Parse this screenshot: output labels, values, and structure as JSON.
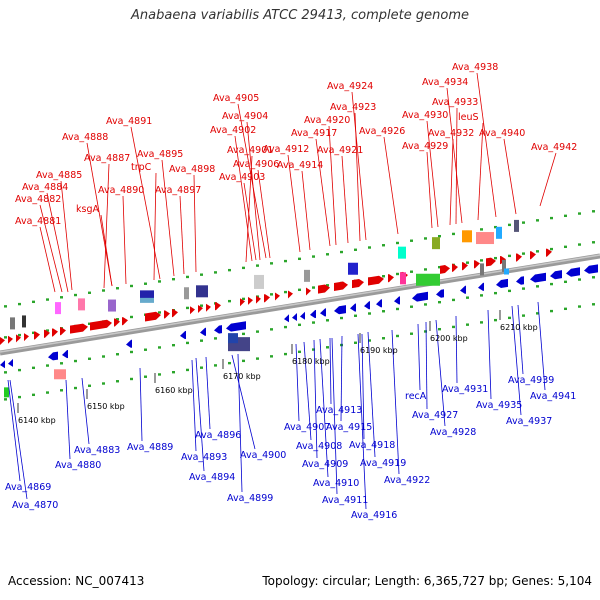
{
  "title": "Anabaena variabilis ATCC 29413, complete genome",
  "footer": {
    "accession": "Accession: NC_007413",
    "summary": "Topology: circular; Length: 6,365,727 bp; Genes: 5,104"
  },
  "colors": {
    "forward": "#e00000",
    "reverse": "#0000d0",
    "backbone": "#999999",
    "ticks": "#2aa52a"
  },
  "scale_labels": [
    "6140 kbp",
    "6150 kbp",
    "6160 kbp",
    "6170 kbp",
    "6180 kbp",
    "6190 kbp",
    "6200 kbp",
    "6210 kbp"
  ],
  "forward_genes": [
    "Ava_4881",
    "Ava_4882",
    "Ava_4884",
    "Ava_4885",
    "Ava_4887",
    "Ava_4888",
    "ksgA",
    "Ava_4890",
    "trpC",
    "Ava_4891",
    "Ava_4895",
    "Ava_4897",
    "Ava_4898",
    "Ava_4901",
    "Ava_4902",
    "Ava_4903",
    "Ava_4904",
    "Ava_4905",
    "Ava_4906",
    "Ava_4912",
    "Ava_4914",
    "Ava_4917",
    "Ava_4920",
    "Ava_4921",
    "Ava_4923",
    "Ava_4924",
    "Ava_4926",
    "Ava_4929",
    "Ava_4930",
    "Ava_4932",
    "Ava_4933",
    "Ava_4934",
    "leuS",
    "Ava_4938",
    "Ava_4940",
    "Ava_4942"
  ],
  "reverse_genes": [
    "Ava_4869",
    "Ava_4870",
    "Ava_4880",
    "Ava_4883",
    "Ava_4889",
    "Ava_4893",
    "Ava_4894",
    "Ava_4896",
    "Ava_4899",
    "Ava_4900",
    "Ava_4907",
    "Ava_4908",
    "Ava_4909",
    "Ava_4910",
    "Ava_4911",
    "Ava_4913",
    "Ava_4915",
    "Ava_4916",
    "Ava_4918",
    "Ava_4919",
    "Ava_4922",
    "recA",
    "Ava_4927",
    "Ava_4928",
    "Ava_4931",
    "Ava_4935",
    "Ava_4937",
    "Ava_4939",
    "Ava_4941"
  ]
}
